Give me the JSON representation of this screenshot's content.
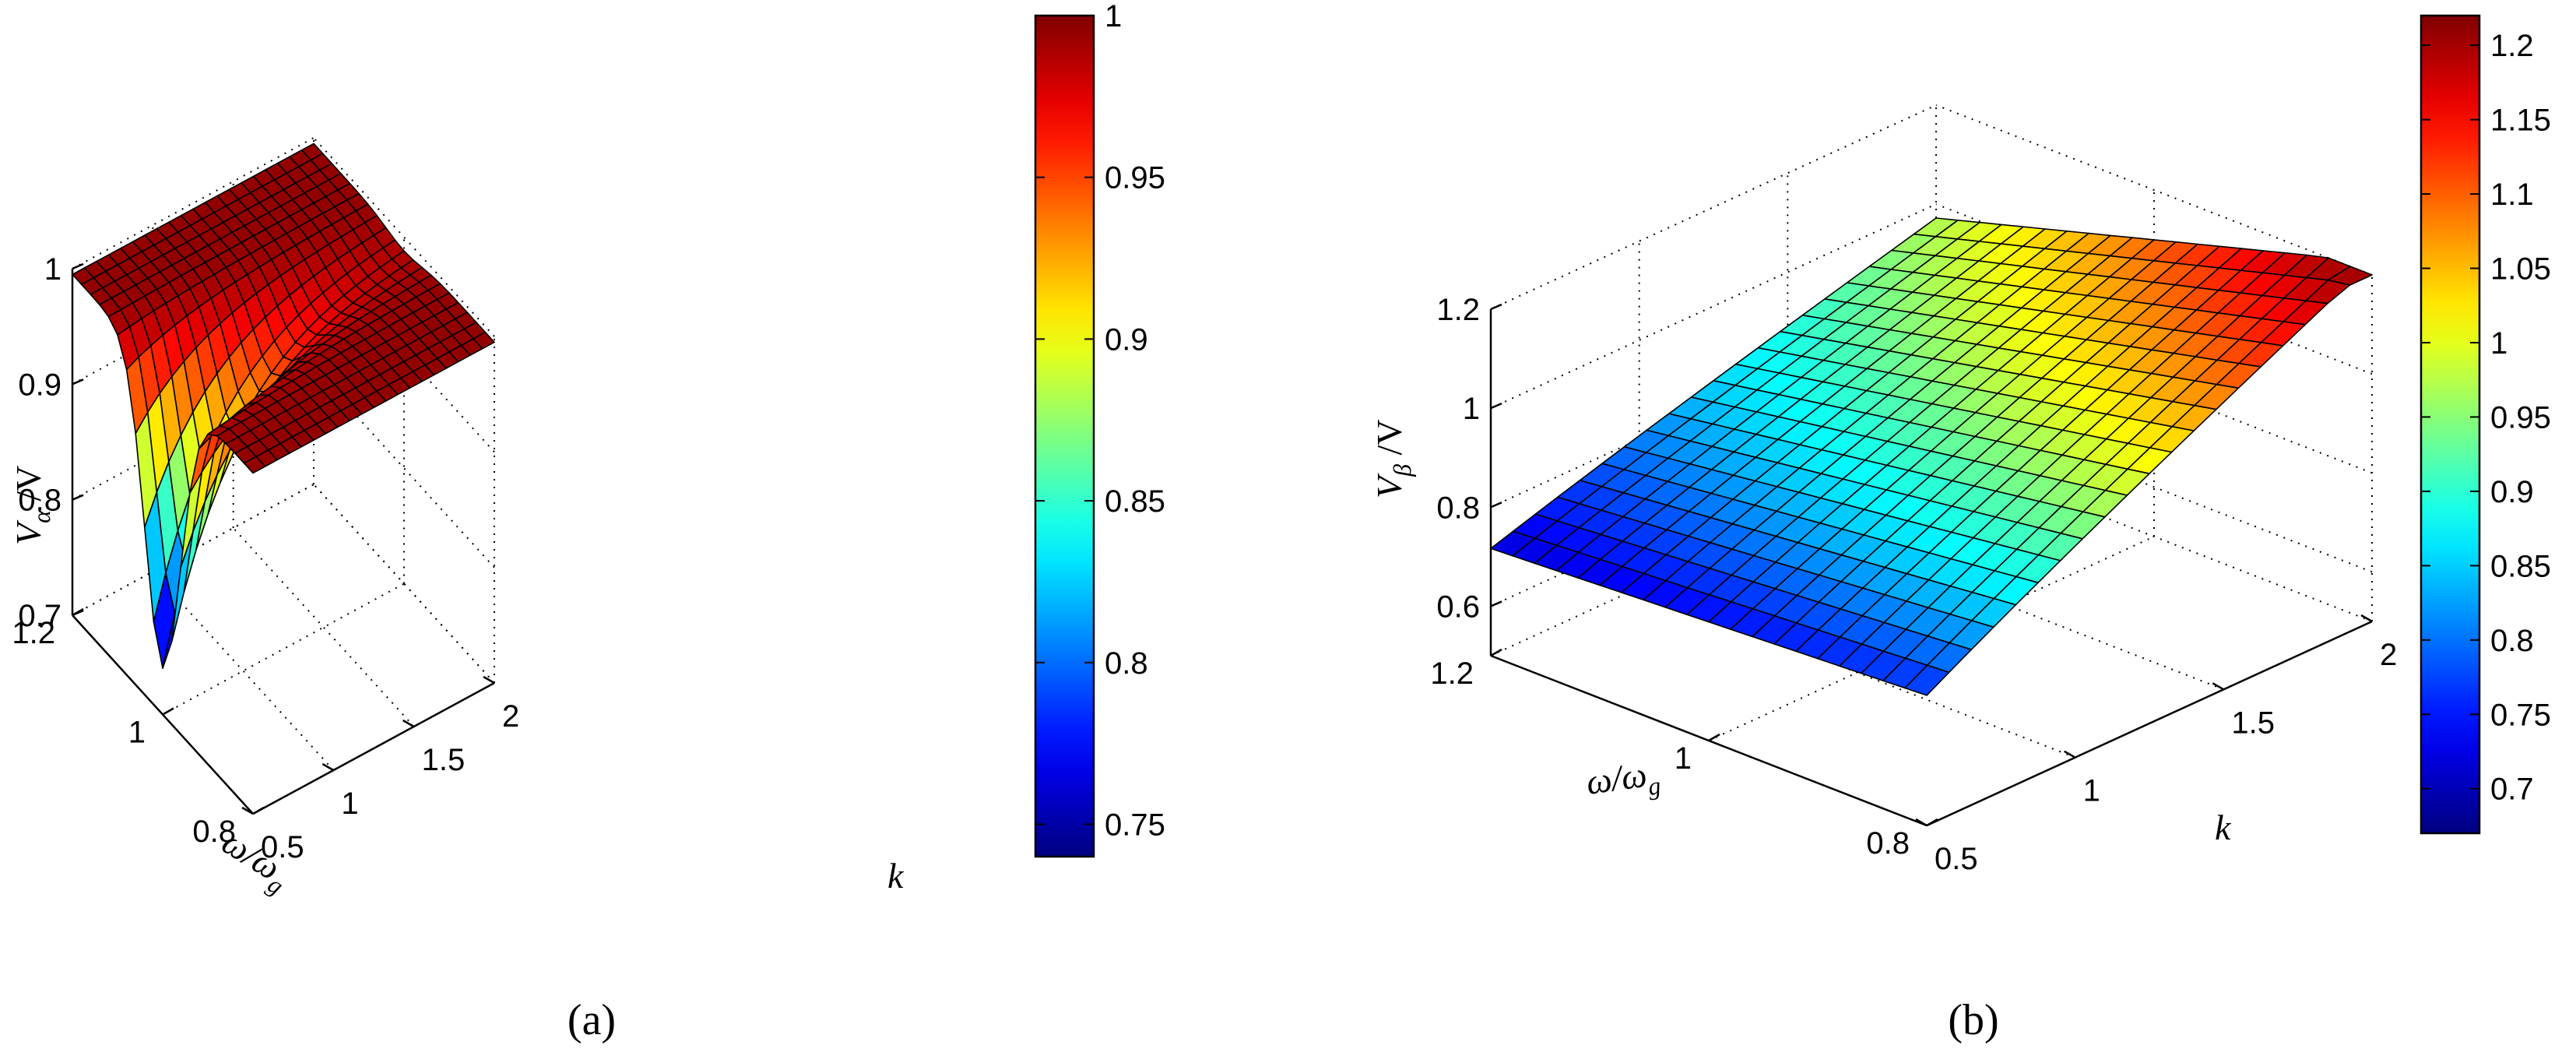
{
  "chart_data": [
    {
      "id": "a",
      "type": "surface3d",
      "caption": "(a)",
      "zlabel": {
        "main": "V",
        "sub": "α",
        "suffix": " /V"
      },
      "xlabel": {
        "main": "ω/ω",
        "sub": "g"
      },
      "ylabel": "k",
      "x_range": [
        0.8,
        1.2
      ],
      "y_range": [
        0.5,
        2
      ],
      "z_range": [
        0.7,
        1
      ],
      "x_ticks": [
        "0.8",
        "1",
        "1.2"
      ],
      "y_ticks": [
        "0.5",
        "1",
        "1.5",
        "2"
      ],
      "z_ticks": [
        "0.7",
        "0.8",
        "0.9",
        "1"
      ],
      "colorbar_range": [
        0.74,
        1.0
      ],
      "colorbar_ticks": [
        "0.75",
        "0.8",
        "0.85",
        "0.9",
        "0.95",
        "1"
      ],
      "colormap": "jet",
      "grid": true,
      "function": "resonance",
      "params": {
        "min": 0.74,
        "max": 0.995,
        "k_decay": 1.2,
        "x_width": 0.055
      }
    },
    {
      "id": "b",
      "type": "surface3d",
      "caption": "(b)",
      "zlabel": {
        "main": "V",
        "sub": "β",
        "suffix": " /V"
      },
      "xlabel": {
        "main": "ω/ω",
        "sub": "g"
      },
      "ylabel": "k",
      "x_range": [
        0.8,
        1.2
      ],
      "y_range": [
        0.5,
        2
      ],
      "z_range": [
        0.5,
        1.2
      ],
      "x_ticks": [
        "0.8",
        "1",
        "1.2"
      ],
      "y_ticks": [
        "0.5",
        "1",
        "1.5",
        "2"
      ],
      "z_ticks": [
        "0.6",
        "0.8",
        "1",
        "1.2"
      ],
      "colorbar_range": [
        0.67,
        1.22
      ],
      "colorbar_ticks": [
        "0.7",
        "0.75",
        "0.8",
        "0.85",
        "0.9",
        "0.95",
        "1",
        "1.05",
        "1.1",
        "1.15",
        "1.2"
      ],
      "colormap": "jet",
      "grid": true,
      "function": "ramp",
      "params": {
        "z_min": 0.66,
        "z_max": 1.2
      }
    }
  ]
}
